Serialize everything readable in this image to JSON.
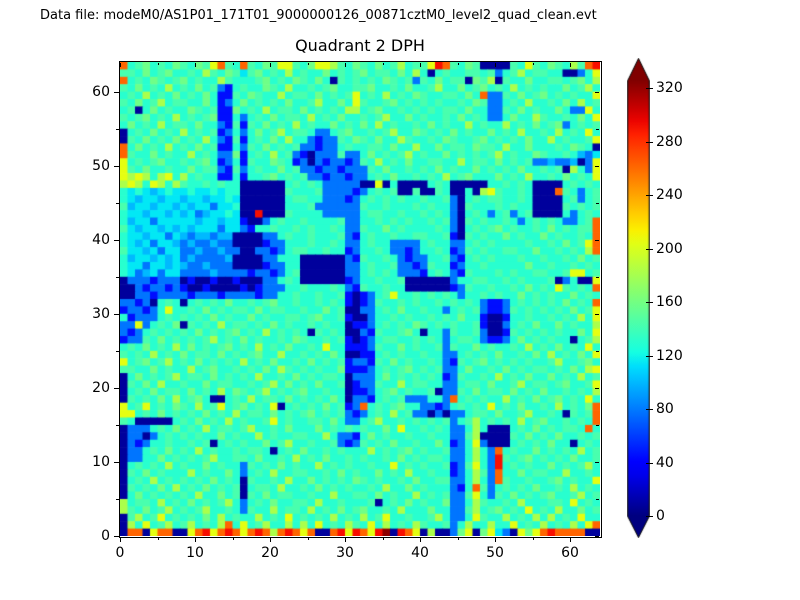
{
  "header": {
    "text": "Data file: modeM0/AS1P01_171T01_9000000126_00871cztM0_level2_quad_clean.evt"
  },
  "chart_data": {
    "type": "heatmap",
    "title": "Quadrant 2 DPH",
    "x_range": [
      0,
      64
    ],
    "y_range": [
      0,
      64
    ],
    "x_major_ticks": [
      0,
      10,
      20,
      30,
      40,
      50,
      60
    ],
    "x_minor_ticks": [
      5,
      15,
      25,
      35,
      45,
      55
    ],
    "y_major_ticks": [
      0,
      10,
      20,
      30,
      40,
      50,
      60
    ],
    "y_minor_ticks": [
      5,
      15,
      25,
      35,
      45,
      55
    ],
    "colormap": "jet",
    "vmin": 0,
    "vmax": 326,
    "colorbar": {
      "ticks": [
        0,
        40,
        80,
        120,
        160,
        200,
        240,
        280,
        320
      ],
      "extend": "both"
    },
    "value_key": {
      "0": 8,
      "1": 45,
      "2": 78,
      "3": 100,
      "4": 115,
      "5": 130,
      "6": 143,
      "7": 158,
      "8": 182,
      "9": 205,
      "A": 235,
      "B": 262,
      "C": 292,
      "D": 322
    },
    "grid_rows_top_to_bottom": [
      "B567565765769B65B65769965799865765756856 69CB65760000659 6576586BC",
      "6657567556586576467565856557565675665758505655665625685665500259",
      "B565765675655865556756576575065656576562657566076806557556656758",
      "6575658565756215655765855656755667556575568557567565856565575685",
      "565856575657511657655856657565695658565765566575B226575675656559",
      "6575685665575125756565755685575965567565656556576225658556575856",
      "5605756557656117565856657565658856755656565665755226575655752295",
      "6567565856567115256575665856575565685575655657565225755865565759",
      "5756585665755216165756585655756575856556575655856558565756725656",
      "0565756585656125257568566522567556568557656575655756585565856595",
      "0657565756585216156575855212265765755865565765567565657558565569",
      "B575658565756115265756562212256556657558557566576658557555657650",
      "B655756558565227156585621022262257565685655756565685655765565324",
      "9565675565675125165576512021221265856575566558566575656223223029",
      "9657556557566216256557562212212226575565657565575656575565608529",
      "9898589585655115155675656221221225657556565856755575658556575659",
      "8985985865565655000000565652222200905000056500000556565000056565",
      "5454345445445455000000655562222125656006006500508965565000B65256",
      "5434434434434454000000566552221256565655655620565665565000056256",
      "6344344343442445000000555622222265565556565520655565655000065656",
      "544344343423445400C000655552222256655655656520565256256000052565",
      "5344244444344344100256556555562255656565565620656556525 65652256B",
      "64344343434442442155655656556522655756555565205656756556575 6566B",
      "54434424323323300002256556555621565565566556106565575655756556 5B",
      "5434244323223220000122555655652256552222565522565655556556575 69B",
      "64434244223223220022125665565512556522125565126565566557556565 8B",
      "5344343423222230000225550000002165565212255621565655565565565756",
      "5442443432232220000122550000002256556221265512556555557556556565",
      "5423424422223222212212560000002256565222156521655565655665569956",
      "0222122201001001000225650000001255655600000025566556565556025009",
      "00212212100100001012225565556521655655000000126556556575 6596565B",
      "0022122221222122221225565565561012569556565652556565575656557565",
      "221205650565657556567556556565101265565655656565211256565657565B",
      "1221259556575656657566556557560022565755655256562112656565657569",
      "5122256565657565575655665675561002556565565657551001556556565859",
      "2292565706565856656575655656550112565657656565561002565755756558",
      "2125656565756567565856565065650021655675055265562001656565655759",
      "1226575656568565756556576556561012566556565256652112575656550568",
      "5657565857565675658565755659551112655756556265575655658565756595",
      "6565856575665756567558556565750011565655655225656575565758565759",
      "9567568565756565856575565756561221657565565216567565656556855675",
      "6655756558567556565758656565571112565675656225755657565665657589",
      "0575656856657565658556575656650222575656565126556585657557565856",
      "0657585565575665565685756575560122655856655225665755685665675569",
      "0565756657565857656856567556550112567565560226575665756575565658",
      "06565758567500565856657565657502215656222552B5656558565756756595",
      "956956576585695675659056565756 12B565675522125656595657556585657B",
      "9956575656575658566575656756562125658562202022566575568556 50656B",
      "650000056575658565569565566575225685565656562568565658567556565B",
      "022256575658566568556575557565656557595565652258500056 57565665B5",
      "0220256565655756558565566558522157565565565522680000657565755656",
      "0212556556560565655756855655621265657556557512592000565657550565",
      "02256575658565565665056575565655585656756556225852B5655756565856",
      "02255756565685566575565856575565655657565665225852C6567565657556",
      "05656585655756552656575655856565565595656556126952C5656557565685",
      "065756555856557525658556655657565575658556551258 62B5575665585565",
      "05658565656575650655658557565657656556575566225852B6556556756559",
      "065657585657565605665855657565655658557565552 15B6256565755658565",
      "0575656565855756065756655655855665756558565622695265756567556856",
      "8566585657565685256575566585565556056575655722586556585556659565",
      "8657568565685565265585665856575675565855575522685675659565855756",
      "0685695656575856558565956565856585695565568522596558565858565955",
      "08595685685658B595685585859565865958565865562585585595658565859B",
      "0BB09BB009BC9BCB9BCB8BCB9B00BC9CB9CD0CB90800279079420979BCBBBB00"
    ]
  }
}
